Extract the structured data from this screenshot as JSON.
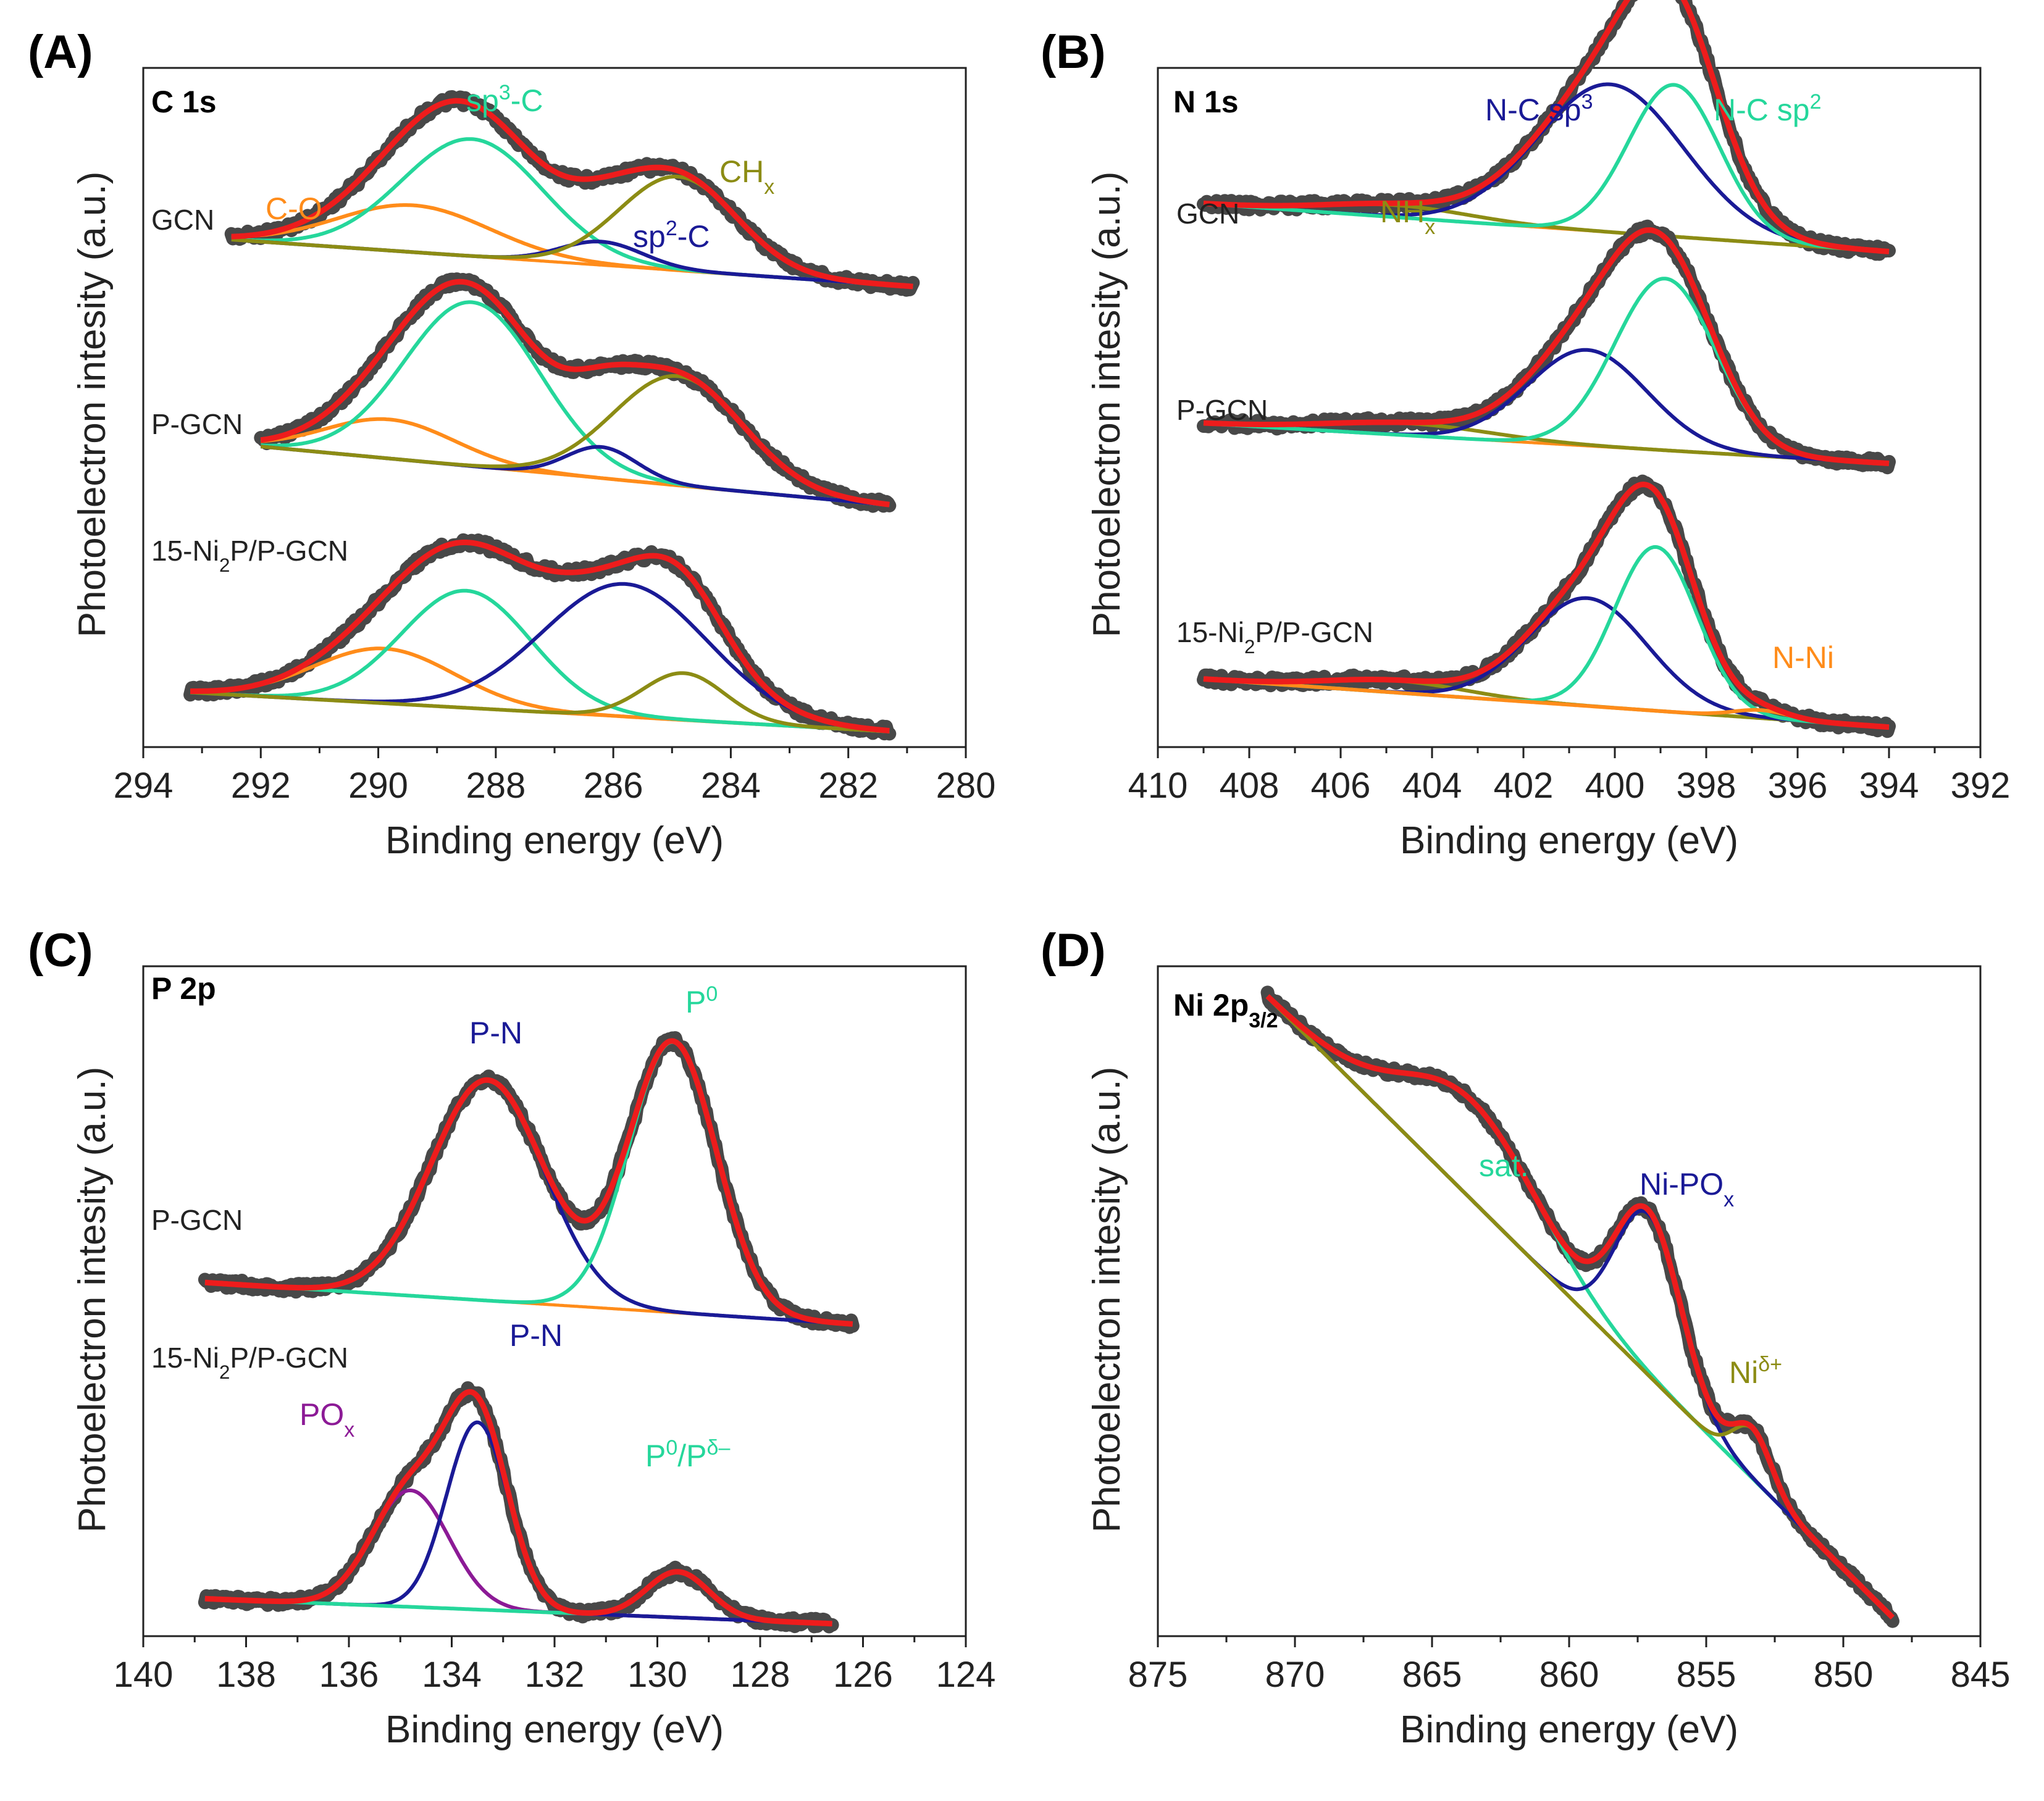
{
  "figure": {
    "panels": [
      {
        "letter": "(A)",
        "core": {
          "main": "C 1s",
          "sub": ""
        },
        "xlabel": "Binding energy (eV)",
        "ylabel": "Photoelectron intesity (a.u.)",
        "xlim": [
          294,
          280
        ],
        "ticks": [
          294,
          292,
          290,
          288,
          286,
          284,
          282,
          280
        ],
        "samples": [
          {
            "name": "GCN",
            "parts": [
              [
                "GCN",
                ""
              ]
            ],
            "range": [
              292.5,
              280.9
            ],
            "base": 0.0,
            "bg": [
              0.0,
              -0.12
            ],
            "components": [
              {
                "center": 289.4,
                "height": 0.12,
                "width": 1.3,
                "color": "orange"
              },
              {
                "center": 288.4,
                "height": 0.3,
                "width": 1.2,
                "color": "mint"
              },
              {
                "center": 286.2,
                "height": 0.06,
                "width": 0.7,
                "color": "navy"
              },
              {
                "center": 284.9,
                "height": 0.24,
                "width": 1.0,
                "color": "olive"
              }
            ]
          },
          {
            "name": "P-GCN",
            "parts": [
              [
                "P-GCN",
                ""
              ]
            ],
            "range": [
              292.0,
              281.3
            ],
            "base": -0.53,
            "bg": [
              0.0,
              -0.15
            ],
            "components": [
              {
                "center": 289.8,
                "height": 0.1,
                "width": 1.1,
                "color": "orange"
              },
              {
                "center": 288.4,
                "height": 0.42,
                "width": 1.15,
                "color": "mint"
              },
              {
                "center": 286.2,
                "height": 0.08,
                "width": 0.6,
                "color": "navy"
              },
              {
                "center": 284.9,
                "height": 0.28,
                "width": 1.1,
                "color": "olive"
              }
            ]
          },
          {
            "name": "15-Ni2P/P-GCN",
            "parts": [
              [
                "15-Ni",
                ""
              ],
              [
                "2",
                "sub"
              ],
              [
                "P/P-GCN",
                ""
              ]
            ],
            "range": [
              293.2,
              281.3
            ],
            "base": -1.16,
            "bg": [
              0.0,
              -0.1
            ],
            "components": [
              {
                "center": 289.9,
                "height": 0.14,
                "width": 1.2,
                "color": "orange"
              },
              {
                "center": 288.5,
                "height": 0.3,
                "width": 1.1,
                "color": "mint"
              },
              {
                "center": 285.8,
                "height": 0.34,
                "width": 1.4,
                "color": "navy"
              },
              {
                "center": 284.8,
                "height": 0.12,
                "width": 0.7,
                "color": "olive"
              }
            ]
          }
        ],
        "peak_labels": [
          {
            "parts": [
              [
                "sp",
                ""
              ],
              [
                "3",
                "sup"
              ],
              [
                "-C",
                ""
              ]
            ],
            "color": "mint"
          },
          {
            "parts": [
              [
                "C-O",
                ""
              ]
            ],
            "color": "orange"
          },
          {
            "parts": [
              [
                "CH",
                ""
              ],
              [
                "x",
                "sub"
              ]
            ],
            "color": "olive"
          },
          {
            "parts": [
              [
                "sp",
                ""
              ],
              [
                "2",
                "sup"
              ],
              [
                "-C",
                ""
              ]
            ],
            "color": "navy"
          }
        ]
      },
      {
        "letter": "(B)",
        "core": {
          "main": "N 1s",
          "sub": ""
        },
        "xlabel": "Binding energy (eV)",
        "ylabel": "Photoelectron intesity (a.u.)",
        "xlim": [
          410,
          392
        ],
        "ticks": [
          410,
          408,
          406,
          404,
          402,
          400,
          398,
          396,
          394,
          392
        ],
        "samples": [
          {
            "name": "GCN",
            "parts": [
              [
                "GCN",
                ""
              ]
            ],
            "range": [
              409.0,
              394.0
            ],
            "base": 0.0,
            "bg": [
              0.0,
              -0.12
            ],
            "components": [
              {
                "center": 404.8,
                "height": 0.03,
                "width": 1.6,
                "color": "olive"
              },
              {
                "center": 400.1,
                "height": 0.37,
                "width": 1.6,
                "color": "navy"
              },
              {
                "center": 398.7,
                "height": 0.38,
                "width": 1.0,
                "color": "mint"
              }
            ]
          },
          {
            "name": "P-GCN",
            "parts": [
              [
                "P-GCN",
                ""
              ]
            ],
            "range": [
              409.0,
              394.0
            ],
            "base": -0.55,
            "bg": [
              0.0,
              -0.1
            ],
            "components": [
              {
                "center": 404.5,
                "height": 0.03,
                "width": 1.8,
                "color": "olive"
              },
              {
                "center": 400.6,
                "height": 0.24,
                "width": 1.3,
                "color": "navy"
              },
              {
                "center": 398.9,
                "height": 0.43,
                "width": 1.1,
                "color": "mint"
              }
            ]
          },
          {
            "name": "15-Ni2P/P-GCN",
            "parts": [
              [
                "15-Ni",
                ""
              ],
              [
                "2",
                "sub"
              ],
              [
                "P/P-GCN",
                ""
              ]
            ],
            "range": [
              409.0,
              394.0
            ],
            "base": -1.19,
            "bg": [
              0.0,
              -0.12
            ],
            "components": [
              {
                "center": 404.8,
                "height": 0.03,
                "width": 1.5,
                "color": "olive"
              },
              {
                "center": 400.6,
                "height": 0.27,
                "width": 1.3,
                "color": "navy"
              },
              {
                "center": 399.1,
                "height": 0.41,
                "width": 0.9,
                "color": "mint"
              },
              {
                "center": 396.8,
                "height": 0.02,
                "width": 0.6,
                "color": "orange"
              }
            ]
          }
        ],
        "peak_labels": [
          {
            "parts": [
              [
                "N-C sp",
                ""
              ],
              [
                "3",
                "sup"
              ]
            ],
            "color": "navy"
          },
          {
            "parts": [
              [
                "N-C sp",
                ""
              ],
              [
                "2",
                "sup"
              ]
            ],
            "color": "mint"
          },
          {
            "parts": [
              [
                "NH",
                ""
              ],
              [
                "x",
                "sub"
              ]
            ],
            "color": "olive"
          },
          {
            "parts": [
              [
                "N-Ni",
                ""
              ]
            ],
            "color": "orange"
          }
        ]
      },
      {
        "letter": "(C)",
        "core": {
          "main": "P 2p",
          "sub": ""
        },
        "xlabel": "Binding energy (eV)",
        "ylabel": "Photoelectron intesity (a.u.)",
        "xlim": [
          140,
          124
        ],
        "ticks": [
          140,
          138,
          136,
          134,
          132,
          130,
          128,
          126,
          124
        ],
        "samples": [
          {
            "name": "P-GCN",
            "parts": [
              [
                "P-GCN",
                ""
              ]
            ],
            "range": [
              138.8,
              126.2
            ],
            "base": 0.0,
            "bg": [
              0.0,
              -0.1
            ],
            "components": [
              {
                "center": 133.3,
                "height": 0.53,
                "width": 1.1,
                "color": "navy"
              },
              {
                "center": 129.7,
                "height": 0.65,
                "width": 0.85,
                "color": "mint"
              }
            ]
          },
          {
            "name": "15-Ni2P/P-GCN",
            "parts": [
              [
                "15-Ni",
                ""
              ],
              [
                "2",
                "sub"
              ],
              [
                "P/P-GCN",
                ""
              ]
            ],
            "range": [
              138.8,
              126.6
            ],
            "base": -0.76,
            "bg": [
              0.0,
              -0.06
            ],
            "components": [
              {
                "center": 134.8,
                "height": 0.28,
                "width": 0.75,
                "color": "purple"
              },
              {
                "center": 133.5,
                "height": 0.45,
                "width": 0.6,
                "color": "navy"
              },
              {
                "center": 129.6,
                "height": 0.11,
                "width": 0.6,
                "color": "mint"
              }
            ]
          }
        ],
        "peak_labels": [
          {
            "parts": [
              [
                "P-N",
                ""
              ]
            ],
            "color": "navy"
          },
          {
            "parts": [
              [
                "P",
                ""
              ],
              [
                "0",
                "sup"
              ]
            ],
            "color": "mint"
          },
          {
            "parts": [
              [
                "P-N",
                ""
              ]
            ],
            "color": "navy"
          },
          {
            "parts": [
              [
                "PO",
                ""
              ],
              [
                "x",
                "sub"
              ]
            ],
            "color": "purple"
          },
          {
            "parts": [
              [
                "P",
                ""
              ],
              [
                "0",
                "sup"
              ],
              [
                "/P",
                ""
              ],
              [
                "δ–",
                "sup"
              ]
            ],
            "color": "mint"
          }
        ]
      },
      {
        "letter": "(D)",
        "core": {
          "main": "Ni 2p",
          "sub": "3/2"
        },
        "xlabel": "Binding energy (eV)",
        "ylabel": "Photoelectron intesity (a.u.)",
        "xlim": [
          875,
          845
        ],
        "ticks": [
          875,
          870,
          865,
          860,
          855,
          850,
          845
        ],
        "samples": [
          {
            "name": "",
            "parts": [],
            "range": [
              871.0,
              848.2
            ],
            "base": 0.0,
            "bg": [
              0.0,
              -1.0
            ],
            "components": [
              {
                "center": 863.5,
                "height": 0.16,
                "width": 2.5,
                "color": "mint"
              },
              {
                "center": 857.1,
                "height": 0.26,
                "width": 1.2,
                "color": "navy"
              },
              {
                "center": 853.3,
                "height": 0.08,
                "width": 0.7,
                "color": "olive"
              }
            ]
          }
        ],
        "peak_labels": [
          {
            "parts": [
              [
                "sat.",
                ""
              ]
            ],
            "color": "mint"
          },
          {
            "parts": [
              [
                "Ni-PO",
                ""
              ],
              [
                "x",
                "sub"
              ]
            ],
            "color": "navy"
          },
          {
            "parts": [
              [
                "Ni",
                ""
              ],
              [
                "δ+",
                "sup"
              ]
            ],
            "color": "olive"
          }
        ]
      }
    ]
  },
  "colors": {
    "raw": "#484848",
    "fit": "#ee1c1c",
    "mint": "#25d79b",
    "navy": "#1a1a96",
    "orange": "#ff8c1a",
    "olive": "#8c8c14",
    "purple": "#8c1a96",
    "frame": "#222222"
  }
}
